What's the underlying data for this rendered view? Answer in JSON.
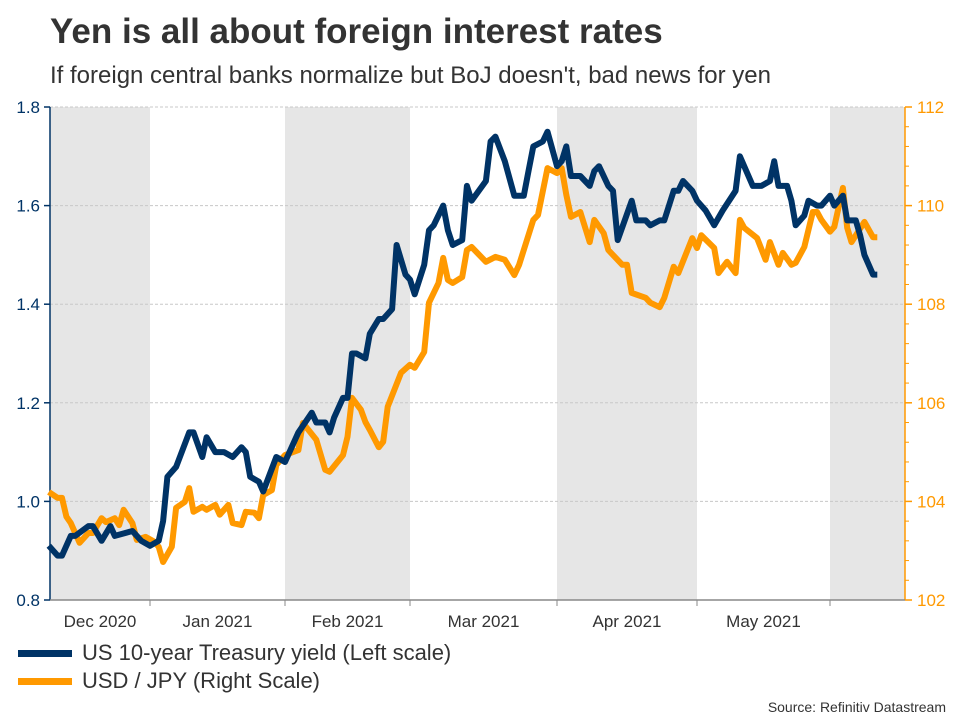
{
  "colors": {
    "us10y": "#003366",
    "usdjpy": "#ff9900",
    "band": "#e6e6e6",
    "grid": "#c8c8c8"
  },
  "chart_data": {
    "type": "line",
    "title": "Yen is all about foreign interest rates",
    "subtitle": "If foreign central banks normalize but BoJ doesn't, bad news for yen",
    "source": "Source: Refinitiv Datastream",
    "x_tick_labels": [
      "Dec 2020",
      "Jan 2021",
      "Feb 2021",
      "Mar 2021",
      "Apr 2021",
      "May 2021"
    ],
    "xlim": [
      "2020-12-09",
      "2021-06-12"
    ],
    "shaded_months": [
      "2020-12",
      "2021-02",
      "2021-04",
      "2021-06"
    ],
    "y_left": {
      "ticks": [
        "0.8",
        "1.0",
        "1.2",
        "1.4",
        "1.6",
        "1.8"
      ],
      "ylim": [
        0.8,
        1.8
      ]
    },
    "y_right": {
      "ticks": [
        "102",
        "104",
        "106",
        "108",
        "110",
        "112"
      ],
      "ylim": [
        102,
        112
      ]
    },
    "grid": "horizontal dashed",
    "legend_placement": "bottom-left",
    "series": [
      {
        "name": "US 10-year Treasury yield (Left scale)",
        "axis": "left",
        "points": [
          [
            "2020-12-09",
            0.91
          ],
          [
            "2020-12-11",
            0.89
          ],
          [
            "2020-12-12",
            0.89
          ],
          [
            "2020-12-14",
            0.93
          ],
          [
            "2020-12-15",
            0.93
          ],
          [
            "2020-12-18",
            0.95
          ],
          [
            "2020-12-19",
            0.95
          ],
          [
            "2020-12-21",
            0.92
          ],
          [
            "2020-12-23",
            0.95
          ],
          [
            "2020-12-24",
            0.93
          ],
          [
            "2020-12-28",
            0.94
          ],
          [
            "2020-12-29",
            0.93
          ],
          [
            "2020-12-30",
            0.92
          ],
          [
            "2021-01-01",
            0.91
          ],
          [
            "2021-01-03",
            0.92
          ],
          [
            "2021-01-04",
            0.96
          ],
          [
            "2021-01-05",
            1.05
          ],
          [
            "2021-01-07",
            1.07
          ],
          [
            "2021-01-10",
            1.14
          ],
          [
            "2021-01-11",
            1.14
          ],
          [
            "2021-01-13",
            1.09
          ],
          [
            "2021-01-14",
            1.13
          ],
          [
            "2021-01-16",
            1.1
          ],
          [
            "2021-01-18",
            1.1
          ],
          [
            "2021-01-20",
            1.09
          ],
          [
            "2021-01-22",
            1.11
          ],
          [
            "2021-01-23",
            1.1
          ],
          [
            "2021-01-24",
            1.05
          ],
          [
            "2021-01-26",
            1.04
          ],
          [
            "2021-01-27",
            1.02
          ],
          [
            "2021-01-30",
            1.09
          ],
          [
            "2021-02-01",
            1.08
          ],
          [
            "2021-02-04",
            1.14
          ],
          [
            "2021-02-07",
            1.18
          ],
          [
            "2021-02-08",
            1.16
          ],
          [
            "2021-02-10",
            1.16
          ],
          [
            "2021-02-11",
            1.14
          ],
          [
            "2021-02-12",
            1.17
          ],
          [
            "2021-02-14",
            1.21
          ],
          [
            "2021-02-15",
            1.21
          ],
          [
            "2021-02-16",
            1.3
          ],
          [
            "2021-02-17",
            1.3
          ],
          [
            "2021-02-19",
            1.29
          ],
          [
            "2021-02-20",
            1.34
          ],
          [
            "2021-02-22",
            1.37
          ],
          [
            "2021-02-23",
            1.37
          ],
          [
            "2021-02-25",
            1.39
          ],
          [
            "2021-02-26",
            1.52
          ],
          [
            "2021-02-28",
            1.46
          ],
          [
            "2021-03-01",
            1.45
          ],
          [
            "2021-03-02",
            1.42
          ],
          [
            "2021-03-04",
            1.48
          ],
          [
            "2021-03-05",
            1.55
          ],
          [
            "2021-03-06",
            1.56
          ],
          [
            "2021-03-08",
            1.6
          ],
          [
            "2021-03-09",
            1.55
          ],
          [
            "2021-03-10",
            1.52
          ],
          [
            "2021-03-12",
            1.53
          ],
          [
            "2021-03-13",
            1.64
          ],
          [
            "2021-03-14",
            1.61
          ],
          [
            "2021-03-17",
            1.65
          ],
          [
            "2021-03-18",
            1.73
          ],
          [
            "2021-03-19",
            1.74
          ],
          [
            "2021-03-21",
            1.69
          ],
          [
            "2021-03-23",
            1.62
          ],
          [
            "2021-03-25",
            1.62
          ],
          [
            "2021-03-26",
            1.67
          ],
          [
            "2021-03-27",
            1.72
          ],
          [
            "2021-03-29",
            1.73
          ],
          [
            "2021-03-30",
            1.75
          ],
          [
            "2021-04-01",
            1.68
          ],
          [
            "2021-04-02",
            1.69
          ],
          [
            "2021-04-03",
            1.72
          ],
          [
            "2021-04-04",
            1.66
          ],
          [
            "2021-04-06",
            1.66
          ],
          [
            "2021-04-08",
            1.64
          ],
          [
            "2021-04-09",
            1.67
          ],
          [
            "2021-04-10",
            1.68
          ],
          [
            "2021-04-12",
            1.64
          ],
          [
            "2021-04-13",
            1.63
          ],
          [
            "2021-04-14",
            1.53
          ],
          [
            "2021-04-17",
            1.61
          ],
          [
            "2021-04-18",
            1.57
          ],
          [
            "2021-04-20",
            1.57
          ],
          [
            "2021-04-21",
            1.56
          ],
          [
            "2021-04-23",
            1.57
          ],
          [
            "2021-04-24",
            1.57
          ],
          [
            "2021-04-26",
            1.63
          ],
          [
            "2021-04-27",
            1.63
          ],
          [
            "2021-04-28",
            1.65
          ],
          [
            "2021-04-30",
            1.63
          ],
          [
            "2021-05-01",
            1.61
          ],
          [
            "2021-05-03",
            1.59
          ],
          [
            "2021-05-05",
            1.56
          ],
          [
            "2021-05-07",
            1.59
          ],
          [
            "2021-05-10",
            1.63
          ],
          [
            "2021-05-11",
            1.7
          ],
          [
            "2021-05-14",
            1.64
          ],
          [
            "2021-05-16",
            1.64
          ],
          [
            "2021-05-18",
            1.65
          ],
          [
            "2021-05-19",
            1.69
          ],
          [
            "2021-05-20",
            1.64
          ],
          [
            "2021-05-22",
            1.64
          ],
          [
            "2021-05-23",
            1.61
          ],
          [
            "2021-05-24",
            1.56
          ],
          [
            "2021-05-26",
            1.58
          ],
          [
            "2021-05-27",
            1.61
          ],
          [
            "2021-05-29",
            1.6
          ],
          [
            "2021-05-30",
            1.6
          ],
          [
            "2021-06-01",
            1.62
          ],
          [
            "2021-06-02",
            1.6
          ],
          [
            "2021-06-04",
            1.62
          ],
          [
            "2021-06-05",
            1.57
          ],
          [
            "2021-06-07",
            1.57
          ],
          [
            "2021-06-08",
            1.54
          ],
          [
            "2021-06-09",
            1.5
          ],
          [
            "2021-06-11",
            1.46
          ],
          [
            "2021-06-12",
            1.46
          ]
        ]
      },
      {
        "name": "USD / JPY (Right Scale)",
        "axis": "right",
        "points": [
          [
            "2020-12-09",
            104.19
          ],
          [
            "2020-12-11",
            104.07
          ],
          [
            "2020-12-12",
            104.07
          ],
          [
            "2020-12-13",
            103.69
          ],
          [
            "2020-12-14",
            103.56
          ],
          [
            "2020-12-16",
            103.16
          ],
          [
            "2020-12-18",
            103.36
          ],
          [
            "2020-12-19",
            103.36
          ],
          [
            "2020-12-21",
            103.66
          ],
          [
            "2020-12-22",
            103.58
          ],
          [
            "2020-12-24",
            103.66
          ],
          [
            "2020-12-25",
            103.52
          ],
          [
            "2020-12-26",
            103.83
          ],
          [
            "2020-12-28",
            103.56
          ],
          [
            "2020-12-29",
            103.22
          ],
          [
            "2020-12-31",
            103.28
          ],
          [
            "2021-01-02",
            103.18
          ],
          [
            "2021-01-03",
            103.08
          ],
          [
            "2021-01-04",
            102.77
          ],
          [
            "2021-01-06",
            103.08
          ],
          [
            "2021-01-07",
            103.87
          ],
          [
            "2021-01-09",
            103.99
          ],
          [
            "2021-01-10",
            104.27
          ],
          [
            "2021-01-11",
            103.79
          ],
          [
            "2021-01-13",
            103.89
          ],
          [
            "2021-01-14",
            103.83
          ],
          [
            "2021-01-16",
            103.93
          ],
          [
            "2021-01-17",
            103.73
          ],
          [
            "2021-01-19",
            103.93
          ],
          [
            "2021-01-20",
            103.56
          ],
          [
            "2021-01-22",
            103.52
          ],
          [
            "2021-01-23",
            103.79
          ],
          [
            "2021-01-25",
            103.77
          ],
          [
            "2021-01-26",
            103.66
          ],
          [
            "2021-01-27",
            104.13
          ],
          [
            "2021-01-29",
            104.23
          ],
          [
            "2021-01-30",
            104.74
          ],
          [
            "2021-02-01",
            104.94
          ],
          [
            "2021-02-04",
            105.04
          ],
          [
            "2021-02-05",
            105.59
          ],
          [
            "2021-02-08",
            105.25
          ],
          [
            "2021-02-10",
            104.64
          ],
          [
            "2021-02-11",
            104.6
          ],
          [
            "2021-02-14",
            104.94
          ],
          [
            "2021-02-15",
            105.31
          ],
          [
            "2021-02-16",
            106.1
          ],
          [
            "2021-02-18",
            105.86
          ],
          [
            "2021-02-19",
            105.61
          ],
          [
            "2021-02-20",
            105.45
          ],
          [
            "2021-02-22",
            105.1
          ],
          [
            "2021-02-23",
            105.21
          ],
          [
            "2021-02-24",
            105.92
          ],
          [
            "2021-02-27",
            106.61
          ],
          [
            "2021-03-01",
            106.77
          ],
          [
            "2021-03-02",
            106.71
          ],
          [
            "2021-03-04",
            107.03
          ],
          [
            "2021-03-05",
            108.03
          ],
          [
            "2021-03-07",
            108.43
          ],
          [
            "2021-03-08",
            108.94
          ],
          [
            "2021-03-09",
            108.49
          ],
          [
            "2021-03-10",
            108.43
          ],
          [
            "2021-03-12",
            108.55
          ],
          [
            "2021-03-13",
            109.1
          ],
          [
            "2021-03-14",
            109.16
          ],
          [
            "2021-03-17",
            108.86
          ],
          [
            "2021-03-19",
            108.96
          ],
          [
            "2021-03-21",
            108.9
          ],
          [
            "2021-03-23",
            108.59
          ],
          [
            "2021-03-24",
            108.8
          ],
          [
            "2021-03-27",
            109.71
          ],
          [
            "2021-03-28",
            109.81
          ],
          [
            "2021-03-30",
            110.76
          ],
          [
            "2021-04-01",
            110.66
          ],
          [
            "2021-04-02",
            110.76
          ],
          [
            "2021-04-03",
            110.22
          ],
          [
            "2021-04-04",
            109.77
          ],
          [
            "2021-04-06",
            109.87
          ],
          [
            "2021-04-08",
            109.26
          ],
          [
            "2021-04-09",
            109.71
          ],
          [
            "2021-04-11",
            109.44
          ],
          [
            "2021-04-12",
            109.1
          ],
          [
            "2021-04-15",
            108.8
          ],
          [
            "2021-04-16",
            108.8
          ],
          [
            "2021-04-17",
            108.23
          ],
          [
            "2021-04-20",
            108.13
          ],
          [
            "2021-04-21",
            108.03
          ],
          [
            "2021-04-23",
            107.94
          ],
          [
            "2021-04-24",
            108.13
          ],
          [
            "2021-04-26",
            108.76
          ],
          [
            "2021-04-27",
            108.63
          ],
          [
            "2021-04-30",
            109.34
          ],
          [
            "2021-05-01",
            109.14
          ],
          [
            "2021-05-02",
            109.4
          ],
          [
            "2021-05-05",
            109.14
          ],
          [
            "2021-05-06",
            108.63
          ],
          [
            "2021-05-08",
            108.86
          ],
          [
            "2021-05-10",
            108.63
          ],
          [
            "2021-05-11",
            109.71
          ],
          [
            "2021-05-12",
            109.55
          ],
          [
            "2021-05-15",
            109.34
          ],
          [
            "2021-05-17",
            108.9
          ],
          [
            "2021-05-18",
            109.26
          ],
          [
            "2021-05-20",
            108.8
          ],
          [
            "2021-05-21",
            109.04
          ],
          [
            "2021-05-23",
            108.8
          ],
          [
            "2021-05-24",
            108.84
          ],
          [
            "2021-05-26",
            109.16
          ],
          [
            "2021-05-28",
            109.87
          ],
          [
            "2021-05-29",
            109.87
          ],
          [
            "2021-05-30",
            109.71
          ],
          [
            "2021-06-01",
            109.47
          ],
          [
            "2021-06-02",
            109.57
          ],
          [
            "2021-06-04",
            110.36
          ],
          [
            "2021-06-05",
            109.55
          ],
          [
            "2021-06-06",
            109.26
          ],
          [
            "2021-06-09",
            109.67
          ],
          [
            "2021-06-11",
            109.36
          ],
          [
            "2021-06-12",
            109.36
          ]
        ]
      }
    ]
  }
}
